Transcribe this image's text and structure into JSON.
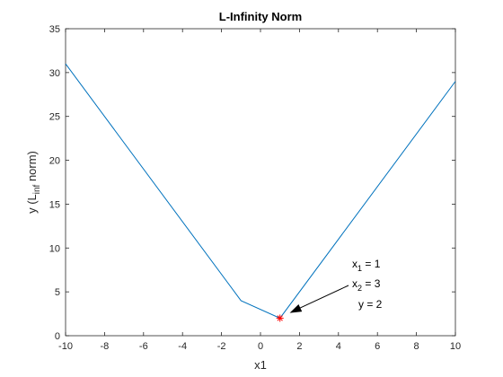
{
  "chart_data": {
    "type": "line",
    "title": "L-Infinity Norm",
    "xlabel": "x1",
    "ylabel": {
      "prefix": "y (L",
      "subscript": "inf",
      "suffix": " norm)"
    },
    "xlim": [
      -10,
      10
    ],
    "ylim": [
      0,
      35
    ],
    "xticks": [
      -10,
      -8,
      -6,
      -4,
      -2,
      0,
      2,
      4,
      6,
      8,
      10
    ],
    "yticks": [
      0,
      5,
      10,
      15,
      20,
      25,
      30,
      35
    ],
    "grid": false,
    "series": [
      {
        "x": [
          -10,
          -1,
          1,
          10
        ],
        "y": [
          31,
          4,
          2,
          29
        ]
      }
    ],
    "marker": {
      "x": 1,
      "y": 2,
      "symbol": "*"
    },
    "annotation": {
      "lines": [
        {
          "base": "x",
          "sub": "1",
          "rest": " = 1"
        },
        {
          "base": "x",
          "sub": "2",
          "rest": " = 3"
        },
        {
          "base": "",
          "sub": "",
          "rest": "y = 2"
        }
      ],
      "arrow_target": {
        "x": 1.5,
        "y": 2.6
      }
    },
    "colors": {
      "line": "#0072BD",
      "marker": "#FF0000",
      "axes": "#262626",
      "arrow": "#000000"
    }
  }
}
